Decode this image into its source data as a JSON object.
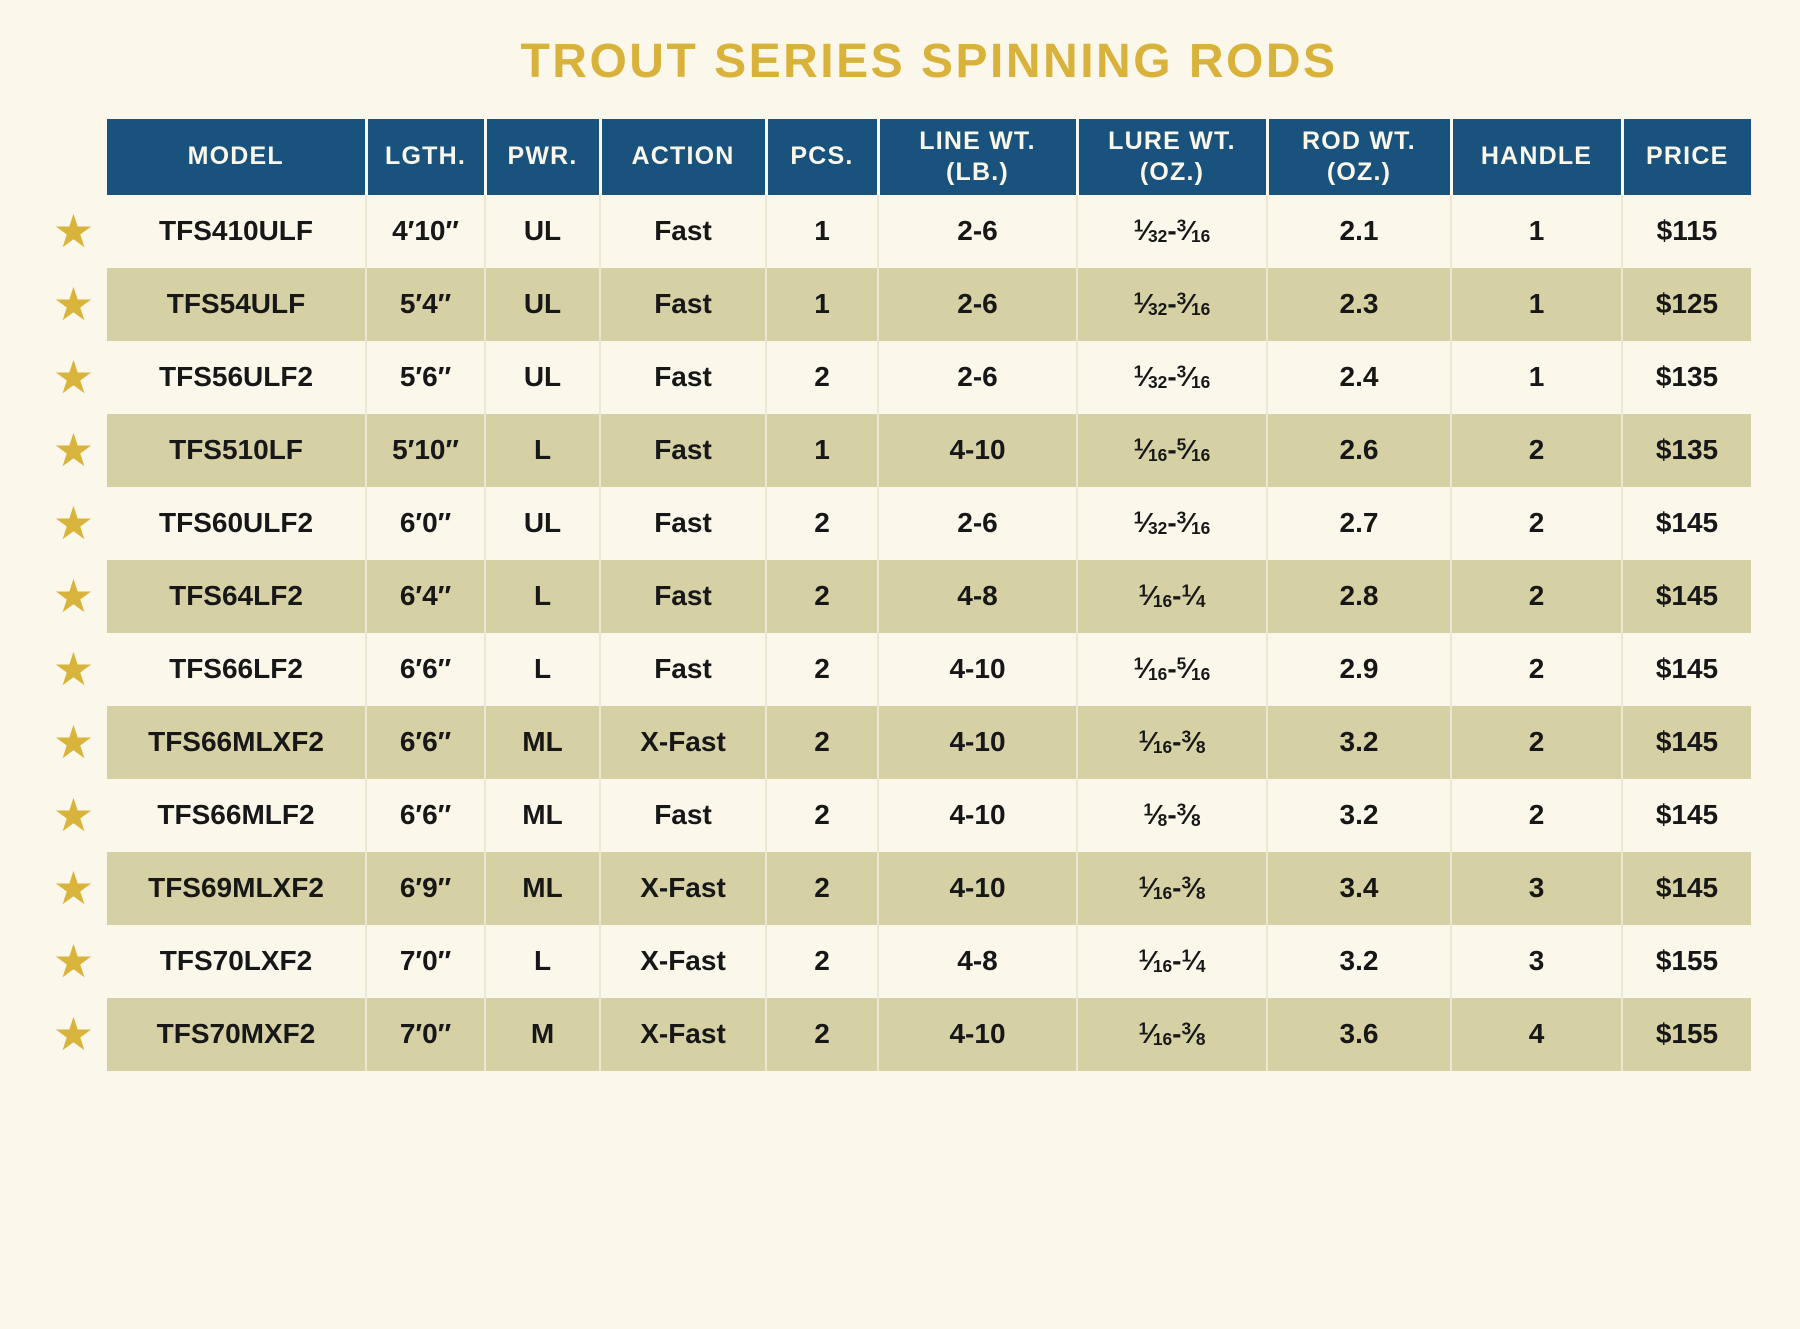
{
  "title": "TROUT SERIES SPINNING RODS",
  "icons": {
    "star": "★"
  },
  "colors": {
    "background": "#FBF8EB",
    "header_bg": "#19537D",
    "header_text": "#FAF7EA",
    "row_alt_bg": "#D5D1A5",
    "accent_gold": "#D8B23B",
    "star_gold": "#D9B43C",
    "body_text": "#171717"
  },
  "chart_data": {
    "type": "table",
    "title": "TROUT SERIES SPINNING RODS",
    "legend_note": "gold star marks each model row",
    "columns": [
      {
        "key": "model",
        "label": "MODEL"
      },
      {
        "key": "length",
        "label": "LGTH."
      },
      {
        "key": "power",
        "label": "PWR."
      },
      {
        "key": "action",
        "label": "ACTION"
      },
      {
        "key": "pieces",
        "label": "PCS."
      },
      {
        "key": "line_wt",
        "label": "LINE WT.\n(LB.)"
      },
      {
        "key": "lure_wt",
        "label": "LURE WT.\n(OZ.)",
        "fraction": true
      },
      {
        "key": "rod_wt",
        "label": "ROD WT.\n(OZ.)"
      },
      {
        "key": "handle",
        "label": "HANDLE"
      },
      {
        "key": "price",
        "label": "PRICE"
      }
    ],
    "rows": [
      {
        "featured": true,
        "model": "TFS410ULF",
        "length": "4′10″",
        "power": "UL",
        "action": "Fast",
        "pieces": "1",
        "line_wt": "2-6",
        "lure_wt": "1/32-3/16",
        "rod_wt": "2.1",
        "handle": "1",
        "price": "$115"
      },
      {
        "featured": true,
        "model": "TFS54ULF",
        "length": "5′4″",
        "power": "UL",
        "action": "Fast",
        "pieces": "1",
        "line_wt": "2-6",
        "lure_wt": "1/32-3/16",
        "rod_wt": "2.3",
        "handle": "1",
        "price": "$125"
      },
      {
        "featured": true,
        "model": "TFS56ULF2",
        "length": "5′6″",
        "power": "UL",
        "action": "Fast",
        "pieces": "2",
        "line_wt": "2-6",
        "lure_wt": "1/32-3/16",
        "rod_wt": "2.4",
        "handle": "1",
        "price": "$135"
      },
      {
        "featured": true,
        "model": "TFS510LF",
        "length": "5′10″",
        "power": "L",
        "action": "Fast",
        "pieces": "1",
        "line_wt": "4-10",
        "lure_wt": "1/16-5/16",
        "rod_wt": "2.6",
        "handle": "2",
        "price": "$135"
      },
      {
        "featured": true,
        "model": "TFS60ULF2",
        "length": "6′0″",
        "power": "UL",
        "action": "Fast",
        "pieces": "2",
        "line_wt": "2-6",
        "lure_wt": "1/32-3/16",
        "rod_wt": "2.7",
        "handle": "2",
        "price": "$145"
      },
      {
        "featured": true,
        "model": "TFS64LF2",
        "length": "6′4″",
        "power": "L",
        "action": "Fast",
        "pieces": "2",
        "line_wt": "4-8",
        "lure_wt": "1/16-1/4",
        "rod_wt": "2.8",
        "handle": "2",
        "price": "$145"
      },
      {
        "featured": true,
        "model": "TFS66LF2",
        "length": "6′6″",
        "power": "L",
        "action": "Fast",
        "pieces": "2",
        "line_wt": "4-10",
        "lure_wt": "1/16-5/16",
        "rod_wt": "2.9",
        "handle": "2",
        "price": "$145"
      },
      {
        "featured": true,
        "model": "TFS66MLXF2",
        "length": "6′6″",
        "power": "ML",
        "action": "X-Fast",
        "pieces": "2",
        "line_wt": "4-10",
        "lure_wt": "1/16-3/8",
        "rod_wt": "3.2",
        "handle": "2",
        "price": "$145"
      },
      {
        "featured": true,
        "model": "TFS66MLF2",
        "length": "6′6″",
        "power": "ML",
        "action": "Fast",
        "pieces": "2",
        "line_wt": "4-10",
        "lure_wt": "1/8-3/8",
        "rod_wt": "3.2",
        "handle": "2",
        "price": "$145"
      },
      {
        "featured": true,
        "model": "TFS69MLXF2",
        "length": "6′9″",
        "power": "ML",
        "action": "X-Fast",
        "pieces": "2",
        "line_wt": "4-10",
        "lure_wt": "1/16-3/8",
        "rod_wt": "3.4",
        "handle": "3",
        "price": "$145"
      },
      {
        "featured": true,
        "model": "TFS70LXF2",
        "length": "7′0″",
        "power": "L",
        "action": "X-Fast",
        "pieces": "2",
        "line_wt": "4-8",
        "lure_wt": "1/16-1/4",
        "rod_wt": "3.2",
        "handle": "3",
        "price": "$155"
      },
      {
        "featured": true,
        "model": "TFS70MXF2",
        "length": "7′0″",
        "power": "M",
        "action": "X-Fast",
        "pieces": "2",
        "line_wt": "4-10",
        "lure_wt": "1/16-3/8",
        "rod_wt": "3.6",
        "handle": "4",
        "price": "$155"
      }
    ]
  }
}
